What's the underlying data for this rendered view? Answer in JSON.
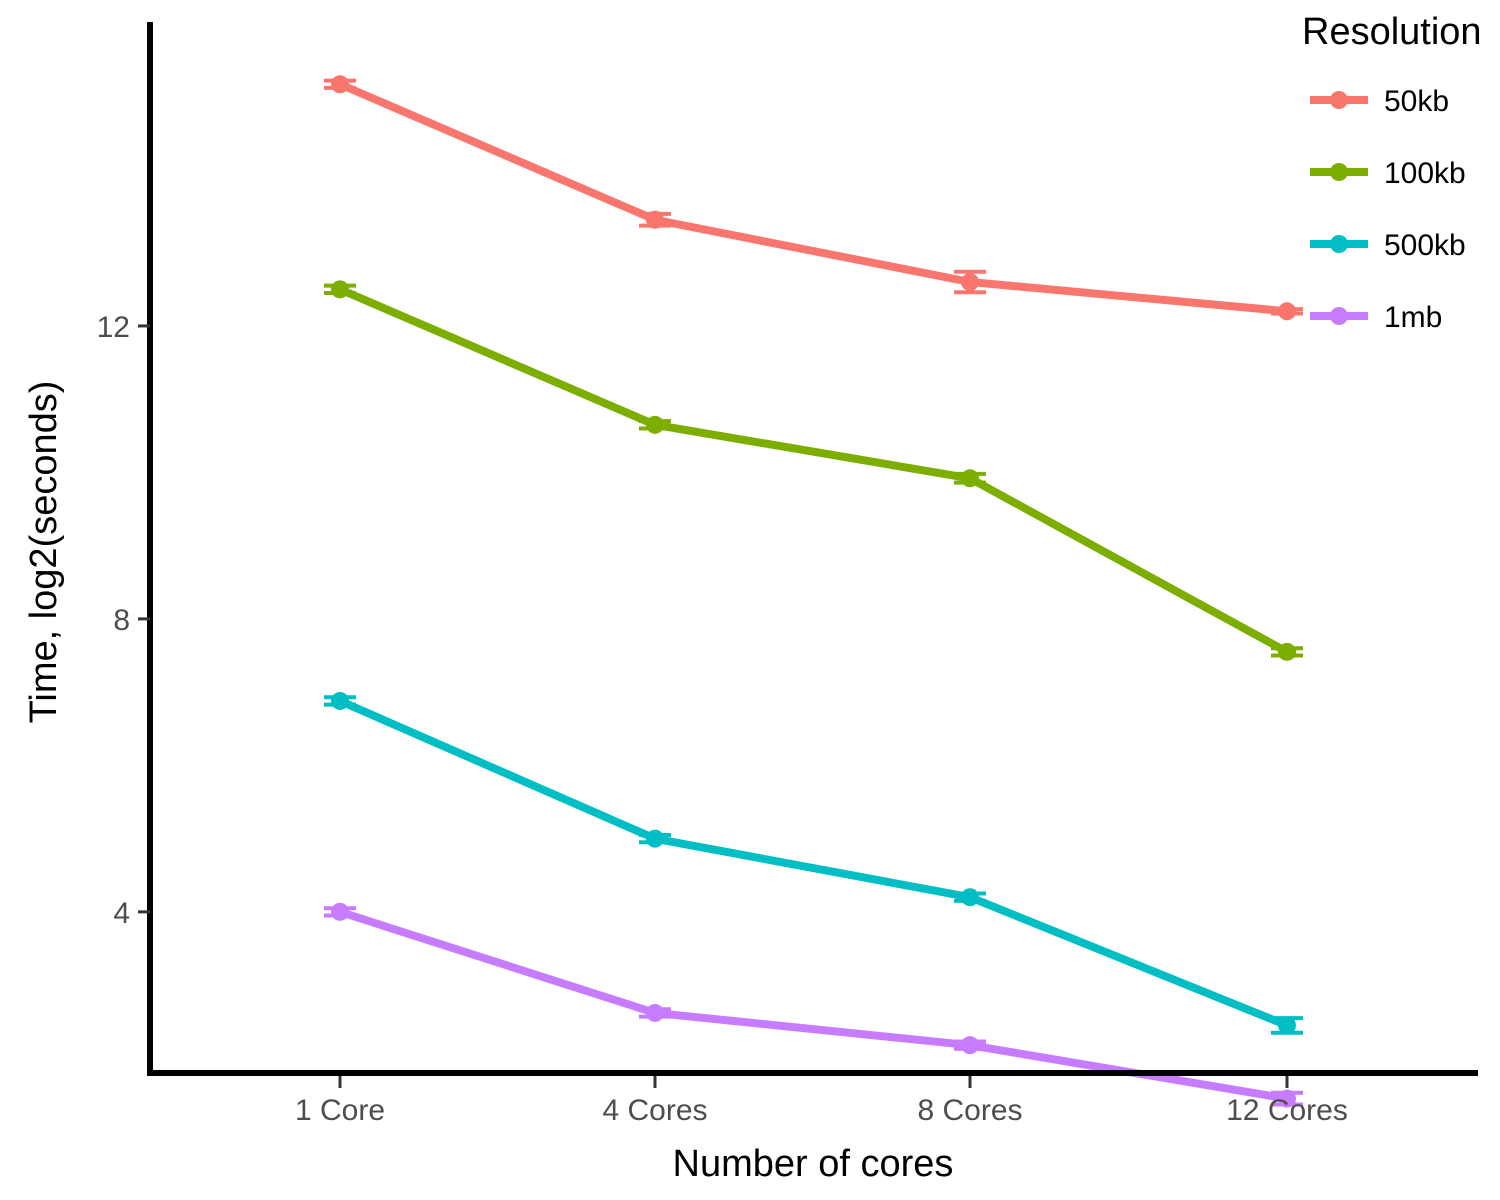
{
  "chart_data": {
    "type": "line",
    "title": "",
    "xlabel": "Number of cores",
    "ylabel": "Time, log2(seconds)",
    "categories": [
      "1 Core",
      "4 Cores",
      "8 Cores",
      "12 Cores"
    ],
    "ylim": [
      1.8,
      16.15
    ],
    "yticks": [
      4,
      8,
      12
    ],
    "grid": false,
    "legend": {
      "title": "Resolution",
      "position": "top-right"
    },
    "series": [
      {
        "name": "50kb",
        "color": "#F8766D",
        "values": [
          15.3,
          13.45,
          12.6,
          12.2
        ],
        "errors": [
          0.05,
          0.08,
          0.14,
          0.03
        ]
      },
      {
        "name": "100kb",
        "color": "#7CAE00",
        "values": [
          12.5,
          10.65,
          9.92,
          7.55
        ],
        "errors": [
          0.05,
          0.05,
          0.06,
          0.05
        ]
      },
      {
        "name": "500kb",
        "color": "#00BFC4",
        "values": [
          6.88,
          5.0,
          4.2,
          2.45
        ],
        "errors": [
          0.05,
          0.05,
          0.05,
          0.1
        ]
      },
      {
        "name": "1mb",
        "color": "#C77CFF",
        "values": [
          4.0,
          2.62,
          2.18,
          1.45
        ],
        "errors": [
          0.05,
          0.05,
          0.05,
          0.08
        ]
      }
    ]
  }
}
